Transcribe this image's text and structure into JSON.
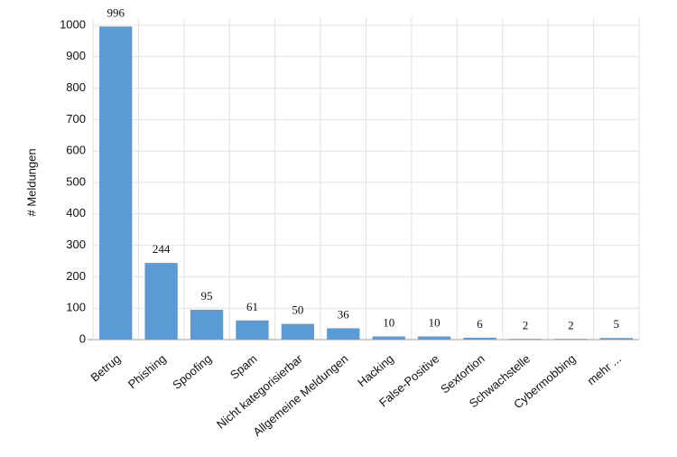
{
  "chart_data": {
    "type": "bar",
    "y_label": "# Meldungen",
    "categories": [
      "Betrug",
      "Phishing",
      "Spoofing",
      "Spam",
      "Nicht kategorisierbar",
      "Allgemeine Meldungen",
      "Hacking",
      "False-Positive",
      "Sextortion",
      "Schwachstelle",
      "Cybermobbing",
      "mehr ..."
    ],
    "values": [
      996,
      244,
      95,
      61,
      50,
      36,
      10,
      10,
      6,
      2,
      2,
      5
    ],
    "color": "#5b9bd5",
    "ylim": [
      0,
      1000
    ],
    "yticks": [
      0,
      100,
      200,
      300,
      400,
      500,
      600,
      700,
      800,
      900,
      1000
    ],
    "grid": true
  }
}
